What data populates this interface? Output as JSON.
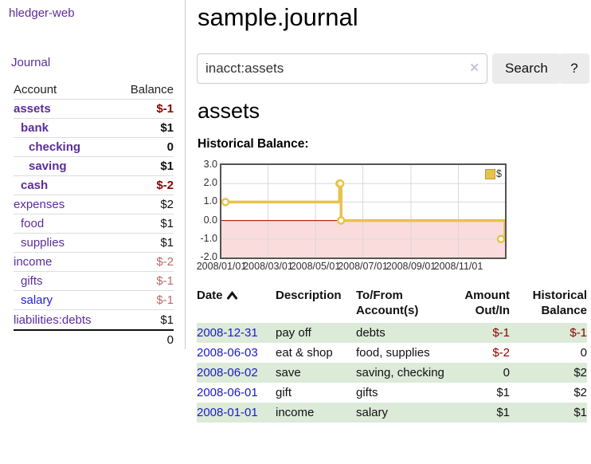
{
  "sidebar": {
    "brand": "hledger-web",
    "nav": {
      "journal": "Journal"
    },
    "accounts": {
      "header": {
        "account": "Account",
        "balance": "Balance"
      },
      "rows": [
        {
          "name": "assets",
          "balance": "$-1"
        },
        {
          "name": "bank",
          "balance": "$1"
        },
        {
          "name": "checking",
          "balance": "0"
        },
        {
          "name": "saving",
          "balance": "$1"
        },
        {
          "name": "cash",
          "balance": "$-2"
        },
        {
          "name": "expenses",
          "balance": "$2"
        },
        {
          "name": "food",
          "balance": "$1"
        },
        {
          "name": "supplies",
          "balance": "$1"
        },
        {
          "name": "income",
          "balance": "$-2"
        },
        {
          "name": "gifts",
          "balance": "$-1"
        },
        {
          "name": "salary",
          "balance": "$-1"
        },
        {
          "name": "liabilities:debts",
          "balance": "$1"
        }
      ],
      "total": "0"
    }
  },
  "main": {
    "title": "sample.journal",
    "search": {
      "value": "inacct:assets",
      "clear_icon": "✕",
      "button": "Search",
      "help": "?"
    },
    "account_heading": "assets",
    "section_label": "Historical Balance:"
  },
  "chart_data": {
    "type": "line",
    "title": "Historical Balance",
    "style": "step",
    "x_range": [
      "2008-01-01",
      "2008-12-31"
    ],
    "ylim": [
      -2,
      3
    ],
    "grid": true,
    "legend_position": "top-right",
    "legend": [
      {
        "label": "$",
        "color": "#e8c24a"
      }
    ],
    "y_ticks": [
      {
        "value": 3,
        "label": "3.0"
      },
      {
        "value": 2,
        "label": "2.0"
      },
      {
        "value": 1,
        "label": "1.0"
      },
      {
        "value": 0,
        "label": "0.0"
      },
      {
        "value": -1,
        "label": "-1.0"
      },
      {
        "value": -2,
        "label": "-2.0"
      }
    ],
    "x_ticks": [
      {
        "date": "2008-01-01",
        "label": "2008/01/01"
      },
      {
        "date": "2008-03-01",
        "label": "2008/03/01"
      },
      {
        "date": "2008-05-01",
        "label": "2008/05/01"
      },
      {
        "date": "2008-07-01",
        "label": "2008/07/01"
      },
      {
        "date": "2008-09-01",
        "label": "2008/09/01"
      },
      {
        "date": "2008-11-01",
        "label": "2008/11/01"
      }
    ],
    "series": [
      {
        "name": "$",
        "color": "#e8c24a",
        "points": [
          [
            "2008-01-01",
            1
          ],
          [
            "2008-06-01",
            2
          ],
          [
            "2008-06-02",
            2
          ],
          [
            "2008-06-03",
            0
          ],
          [
            "2008-12-31",
            -1
          ]
        ]
      }
    ],
    "negative_region": {
      "below": 0,
      "fill": "#fbdcdc",
      "line_color": "#a40000"
    }
  },
  "register": {
    "headers": [
      "Date",
      "Description",
      "To/From Account(s)",
      "Amount Out/In",
      "Historical Balance"
    ],
    "sort": {
      "column": "Date",
      "direction": "ascending"
    },
    "rows": [
      {
        "date": "2008-12-31",
        "description": "pay off",
        "accounts": "debts",
        "amount": "$-1",
        "balance": "$-1"
      },
      {
        "date": "2008-06-03",
        "description": "eat & shop",
        "accounts": "food, supplies",
        "amount": "$-2",
        "balance": "0"
      },
      {
        "date": "2008-06-02",
        "description": "save",
        "accounts": "saving, checking",
        "amount": "0",
        "balance": "$2"
      },
      {
        "date": "2008-06-01",
        "description": "gift",
        "accounts": "gifts",
        "amount": "$1",
        "balance": "$2"
      },
      {
        "date": "2008-01-01",
        "description": "income",
        "accounts": "salary",
        "amount": "$1",
        "balance": "$1"
      }
    ]
  },
  "colors": {
    "link_purple": "#5b2d9b",
    "link_blue": "#2222cc",
    "negative_dark": "#8b0000",
    "negative_muted": "#b96a6a",
    "row_green": "#dcead8",
    "series_yellow": "#e8c24a",
    "zero_line": "#a40000",
    "negative_fill": "#fbdcdc",
    "button_gray": "#ebebeb"
  }
}
